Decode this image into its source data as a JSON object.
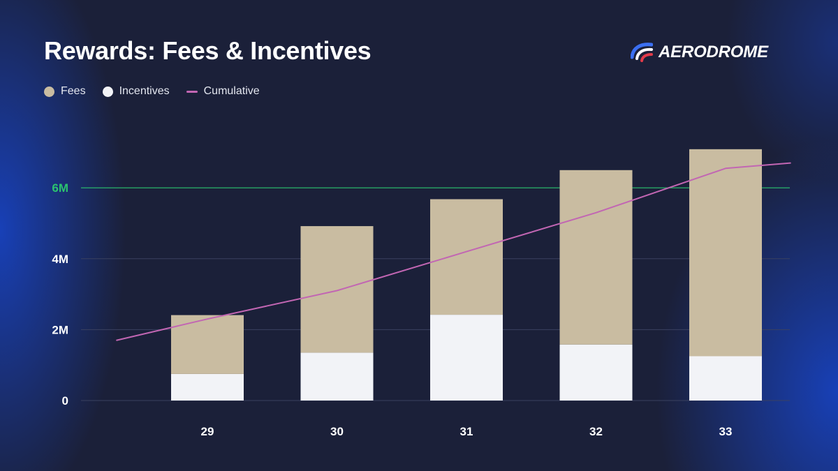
{
  "header": {
    "title": "Rewards: Fees & Incentives",
    "brand": "AERODROME"
  },
  "legend": [
    {
      "label": "Fees",
      "color": "#c9bca1",
      "kind": "dot"
    },
    {
      "label": "Incentives",
      "color": "#f2f3f7",
      "kind": "dot"
    },
    {
      "label": "Cumulative",
      "color": "#c266b3",
      "kind": "line"
    }
  ],
  "chart_data": {
    "type": "bar",
    "stacked": true,
    "title": "Rewards: Fees & Incentives",
    "xlabel": "",
    "ylabel": "",
    "categories": [
      "29",
      "30",
      "31",
      "32",
      "33"
    ],
    "series": [
      {
        "name": "Incentives",
        "color": "#f2f3f7",
        "values": [
          0.75,
          1.35,
          2.42,
          1.58,
          1.25
        ]
      },
      {
        "name": "Fees",
        "color": "#c9bca1",
        "values": [
          1.66,
          3.57,
          3.26,
          4.92,
          5.84
        ]
      }
    ],
    "cumulative": {
      "name": "Cumulative",
      "color": "#c266b3",
      "x": [
        28.3,
        29,
        30,
        31,
        32,
        33,
        33.5
      ],
      "values": [
        1.7,
        2.3,
        3.1,
        4.2,
        5.3,
        6.55,
        6.7
      ]
    },
    "ylim": [
      0,
      7.5
    ],
    "yticks": [
      {
        "value": 0,
        "label": "0"
      },
      {
        "value": 2,
        "label": "2M"
      },
      {
        "value": 4,
        "label": "4M"
      },
      {
        "value": 6,
        "label": "6M",
        "highlight": true
      }
    ],
    "highlight_color": "#2bc46f",
    "grid": true
  }
}
